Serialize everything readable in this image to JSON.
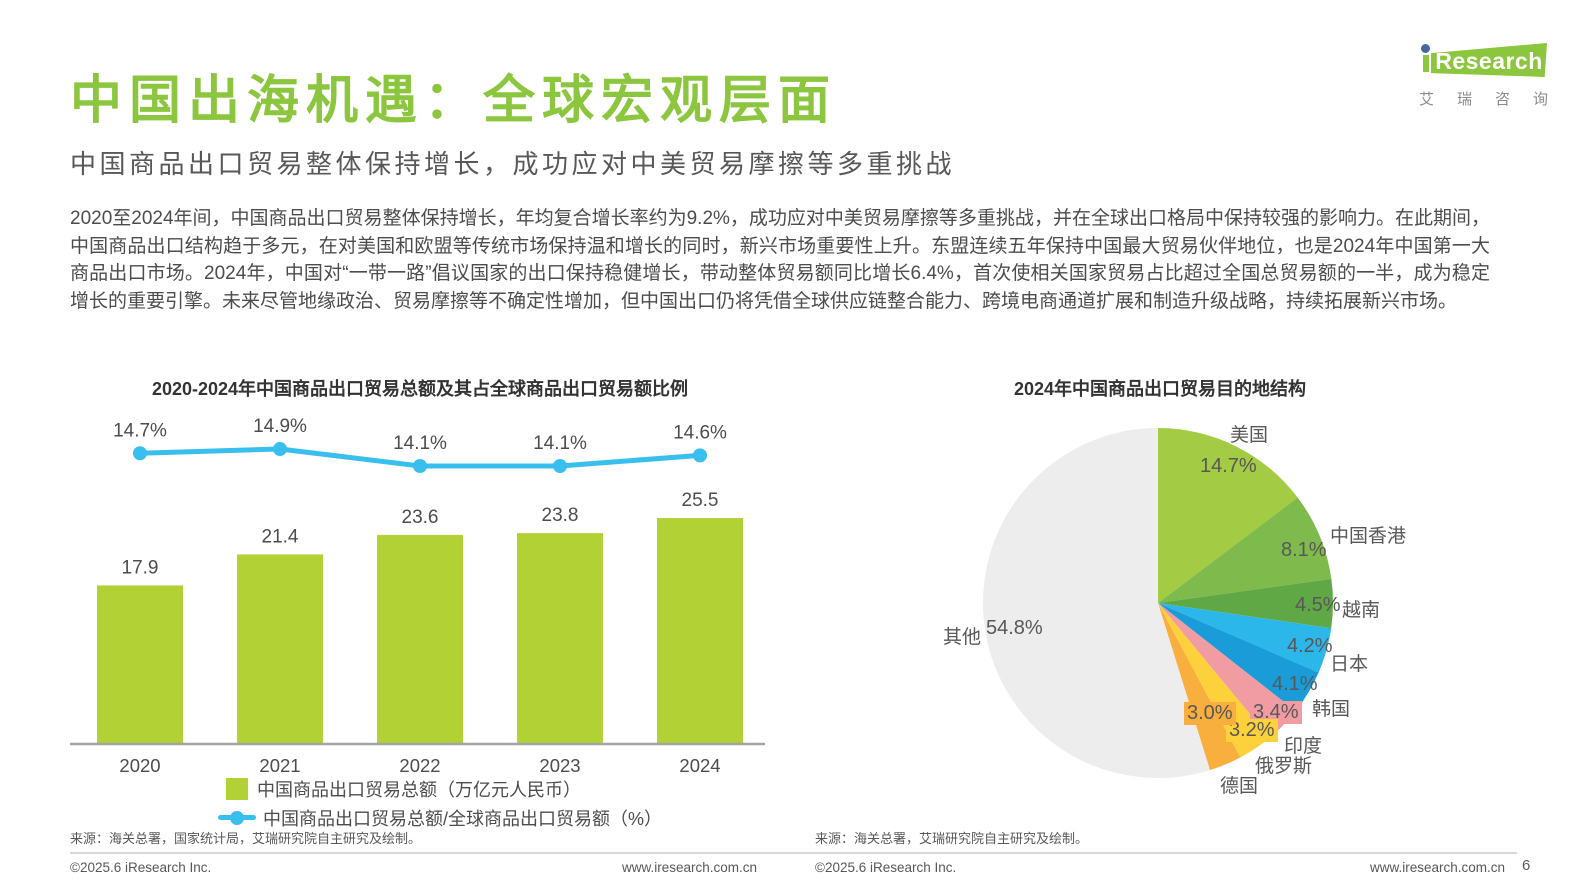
{
  "brand": {
    "logo_en": "Research",
    "logo_i": "i",
    "logo_cn": "艾瑞咨询"
  },
  "colors": {
    "accent_green": "#8CC63F",
    "bar_green": "#B1D135",
    "line_cyan": "#39BFED",
    "logo_blue": "#46689E",
    "text_dark": "#4C4C4C",
    "text_gray": "#595757"
  },
  "header": {
    "title": "中国出海机遇：全球宏观层面",
    "subtitle": "中国商品出口贸易整体保持增长，成功应对中美贸易摩擦等多重挑战"
  },
  "intro": {
    "text": "2020至2024年间，中国商品出口贸易整体保持增长，年均复合增长率约为9.2%，成功应对中美贸易摩擦等多重挑战，并在全球出口格局中保持较强的影响力。在此期间，中国商品出口结构趋于多元，在对美国和欧盟等传统市场保持温和增长的同时，新兴市场重要性上升。东盟连续五年保持中国最大贸易伙伴地位，也是2024年中国第一大商品出口市场。2024年，中国对“一带一路”倡议国家的出口保持稳健增长，带动整体贸易额同比增长6.4%，首次使相关国家贸易占比超过全国总贸易额的一半，成为稳定增长的重要引擎。未来尽管地缘政治、贸易摩擦等不确定性增加，但中国出口仍将凭借全球供应链整合能力、跨境电商通道扩展和制造升级战略，持续拓展新兴市场。"
  },
  "chart_data": [
    {
      "type": "bar",
      "title": "2020-2024年中国商品出口贸易总额及其占全球商品出口贸易额比例",
      "categories": [
        "2020",
        "2021",
        "2022",
        "2023",
        "2024"
      ],
      "series": [
        {
          "name": "中国商品出口贸易总额（万亿元人民币）",
          "type": "bar",
          "values": [
            17.9,
            21.4,
            23.6,
            23.8,
            25.5
          ],
          "value_labels": [
            "17.9",
            "21.4",
            "23.6",
            "23.8",
            "25.5"
          ],
          "color": "#B1D135"
        },
        {
          "name": "中国商品出口贸易总额/全球商品出口贸易额（%）",
          "type": "line",
          "values": [
            14.7,
            14.9,
            14.1,
            14.1,
            14.6
          ],
          "value_labels": [
            "14.7%",
            "14.9%",
            "14.1%",
            "14.1%",
            "14.6%"
          ],
          "color": "#39BFED"
        }
      ],
      "ylim": [
        0,
        30
      ],
      "grid": false,
      "legend_position": "bottom",
      "source": "来源：海关总署，国家统计局，艾瑞研究院自主研究及绘制。"
    },
    {
      "type": "pie",
      "title": "2024年中国商品出口贸易目的地结构",
      "start_angle": "top",
      "direction": "clockwise",
      "slices": [
        {
          "label": "美国",
          "value": 14.7,
          "pct": "14.7%",
          "color": "#A3CC44"
        },
        {
          "label": "中国香港",
          "value": 8.1,
          "pct": "8.1%",
          "color": "#7EBB4C"
        },
        {
          "label": "越南",
          "value": 4.5,
          "pct": "4.5%",
          "color": "#60A846"
        },
        {
          "label": "日本",
          "value": 4.2,
          "pct": "4.2%",
          "color": "#2CB7EA"
        },
        {
          "label": "韩国",
          "value": 4.1,
          "pct": "4.1%",
          "color": "#199CD8"
        },
        {
          "label": "印度",
          "value": 3.4,
          "pct": "3.4%",
          "color": "#F19CA3"
        },
        {
          "label": "俄罗斯",
          "value": 3.2,
          "pct": "3.2%",
          "color": "#FDD13B"
        },
        {
          "label": "德国",
          "value": 3.0,
          "pct": "3.0%",
          "color": "#F9AF3D"
        },
        {
          "label": "其他",
          "value": 54.8,
          "pct": "54.8%",
          "color": "#EDEDED"
        }
      ],
      "source": "来源：海关总署，艾瑞研究院自主研究及绘制。"
    }
  ],
  "footer": {
    "copyright": "©2025.6 iResearch Inc.",
    "website": "www.iresearch.com.cn",
    "page": "6"
  }
}
